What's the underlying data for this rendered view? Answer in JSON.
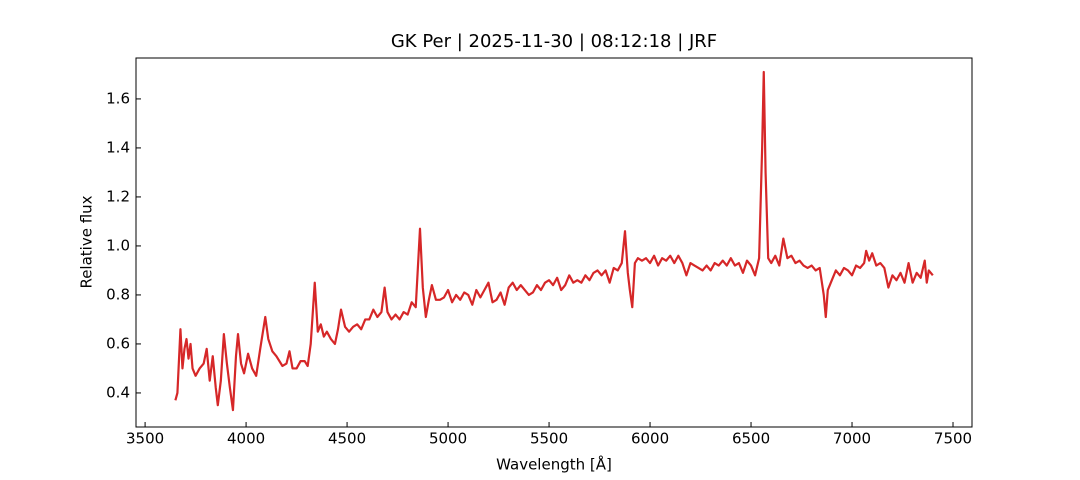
{
  "chart_data": {
    "type": "line",
    "title": "GK Per | 2025-11-30 | 08:12:18 | JRF",
    "xlabel": "Wavelength [Å]",
    "ylabel": "Relative flux",
    "color": "#d62728",
    "xlim": [
      3455,
      7594
    ],
    "ylim": [
      0.261,
      1.767
    ],
    "xticks": [
      3500,
      4000,
      4500,
      5000,
      5500,
      6000,
      6500,
      7000,
      7500
    ],
    "yticks": [
      0.4,
      0.6,
      0.8,
      {
        "value": 1,
        "label": "1.0"
      },
      1.2,
      1.4,
      1.6
    ],
    "x": [
      3650,
      3660,
      3675,
      3685,
      3695,
      3705,
      3715,
      3725,
      3735,
      3750,
      3770,
      3790,
      3805,
      3820,
      3835,
      3850,
      3860,
      3875,
      3890,
      3905,
      3920,
      3935,
      3950,
      3960,
      3975,
      3990,
      4010,
      4030,
      4050,
      4070,
      4095,
      4110,
      4130,
      4150,
      4180,
      4200,
      4215,
      4230,
      4250,
      4270,
      4290,
      4305,
      4320,
      4340,
      4355,
      4370,
      4385,
      4400,
      4420,
      4440,
      4455,
      4470,
      4490,
      4510,
      4530,
      4550,
      4570,
      4590,
      4610,
      4630,
      4650,
      4670,
      4686,
      4700,
      4720,
      4740,
      4760,
      4780,
      4800,
      4820,
      4840,
      4861,
      4875,
      4890,
      4905,
      4920,
      4940,
      4960,
      4980,
      5000,
      5020,
      5040,
      5060,
      5080,
      5100,
      5120,
      5140,
      5160,
      5180,
      5200,
      5220,
      5240,
      5260,
      5280,
      5300,
      5320,
      5340,
      5360,
      5380,
      5400,
      5420,
      5440,
      5460,
      5480,
      5500,
      5520,
      5540,
      5560,
      5580,
      5600,
      5620,
      5640,
      5660,
      5680,
      5700,
      5720,
      5740,
      5760,
      5780,
      5800,
      5820,
      5840,
      5860,
      5876,
      5890,
      5900,
      5912,
      5925,
      5940,
      5960,
      5980,
      6000,
      6020,
      6040,
      6060,
      6080,
      6100,
      6120,
      6140,
      6160,
      6180,
      6200,
      6220,
      6240,
      6260,
      6280,
      6300,
      6320,
      6340,
      6360,
      6380,
      6400,
      6420,
      6440,
      6460,
      6480,
      6500,
      6520,
      6540,
      6555,
      6563,
      6572,
      6585,
      6600,
      6620,
      6640,
      6660,
      6680,
      6700,
      6720,
      6740,
      6760,
      6780,
      6800,
      6820,
      6840,
      6860,
      6870,
      6880,
      6900,
      6920,
      6940,
      6960,
      6980,
      7000,
      7020,
      7040,
      7060,
      7070,
      7085,
      7100,
      7120,
      7140,
      7160,
      7180,
      7200,
      7220,
      7240,
      7260,
      7280,
      7300,
      7320,
      7340,
      7360,
      7370,
      7380,
      7400
    ],
    "values": [
      0.37,
      0.4,
      0.66,
      0.5,
      0.58,
      0.62,
      0.54,
      0.6,
      0.5,
      0.47,
      0.5,
      0.52,
      0.58,
      0.45,
      0.55,
      0.42,
      0.35,
      0.45,
      0.64,
      0.52,
      0.42,
      0.33,
      0.55,
      0.64,
      0.52,
      0.48,
      0.56,
      0.5,
      0.47,
      0.58,
      0.71,
      0.62,
      0.57,
      0.55,
      0.51,
      0.52,
      0.57,
      0.5,
      0.5,
      0.53,
      0.53,
      0.51,
      0.6,
      0.85,
      0.65,
      0.68,
      0.63,
      0.65,
      0.62,
      0.6,
      0.66,
      0.74,
      0.67,
      0.65,
      0.67,
      0.68,
      0.66,
      0.7,
      0.7,
      0.74,
      0.71,
      0.73,
      0.83,
      0.73,
      0.7,
      0.72,
      0.7,
      0.73,
      0.72,
      0.77,
      0.75,
      1.07,
      0.83,
      0.71,
      0.78,
      0.84,
      0.78,
      0.78,
      0.79,
      0.82,
      0.77,
      0.8,
      0.78,
      0.81,
      0.8,
      0.76,
      0.82,
      0.79,
      0.82,
      0.85,
      0.77,
      0.78,
      0.81,
      0.76,
      0.83,
      0.85,
      0.82,
      0.84,
      0.82,
      0.8,
      0.81,
      0.84,
      0.82,
      0.85,
      0.86,
      0.84,
      0.87,
      0.82,
      0.84,
      0.88,
      0.85,
      0.86,
      0.85,
      0.88,
      0.86,
      0.89,
      0.9,
      0.88,
      0.9,
      0.85,
      0.91,
      0.9,
      0.93,
      1.06,
      0.89,
      0.82,
      0.75,
      0.93,
      0.95,
      0.94,
      0.95,
      0.93,
      0.96,
      0.92,
      0.95,
      0.94,
      0.96,
      0.93,
      0.96,
      0.93,
      0.88,
      0.93,
      0.92,
      0.91,
      0.9,
      0.92,
      0.9,
      0.93,
      0.92,
      0.94,
      0.92,
      0.95,
      0.92,
      0.93,
      0.89,
      0.94,
      0.92,
      0.88,
      0.95,
      1.4,
      1.71,
      1.3,
      0.95,
      0.93,
      0.96,
      0.92,
      1.03,
      0.95,
      0.96,
      0.93,
      0.94,
      0.92,
      0.91,
      0.92,
      0.9,
      0.91,
      0.8,
      0.71,
      0.82,
      0.86,
      0.9,
      0.88,
      0.91,
      0.9,
      0.88,
      0.92,
      0.91,
      0.93,
      0.98,
      0.94,
      0.97,
      0.92,
      0.93,
      0.91,
      0.83,
      0.88,
      0.86,
      0.89,
      0.85,
      0.93,
      0.85,
      0.89,
      0.87,
      0.94,
      0.85,
      0.9,
      0.88
    ]
  }
}
